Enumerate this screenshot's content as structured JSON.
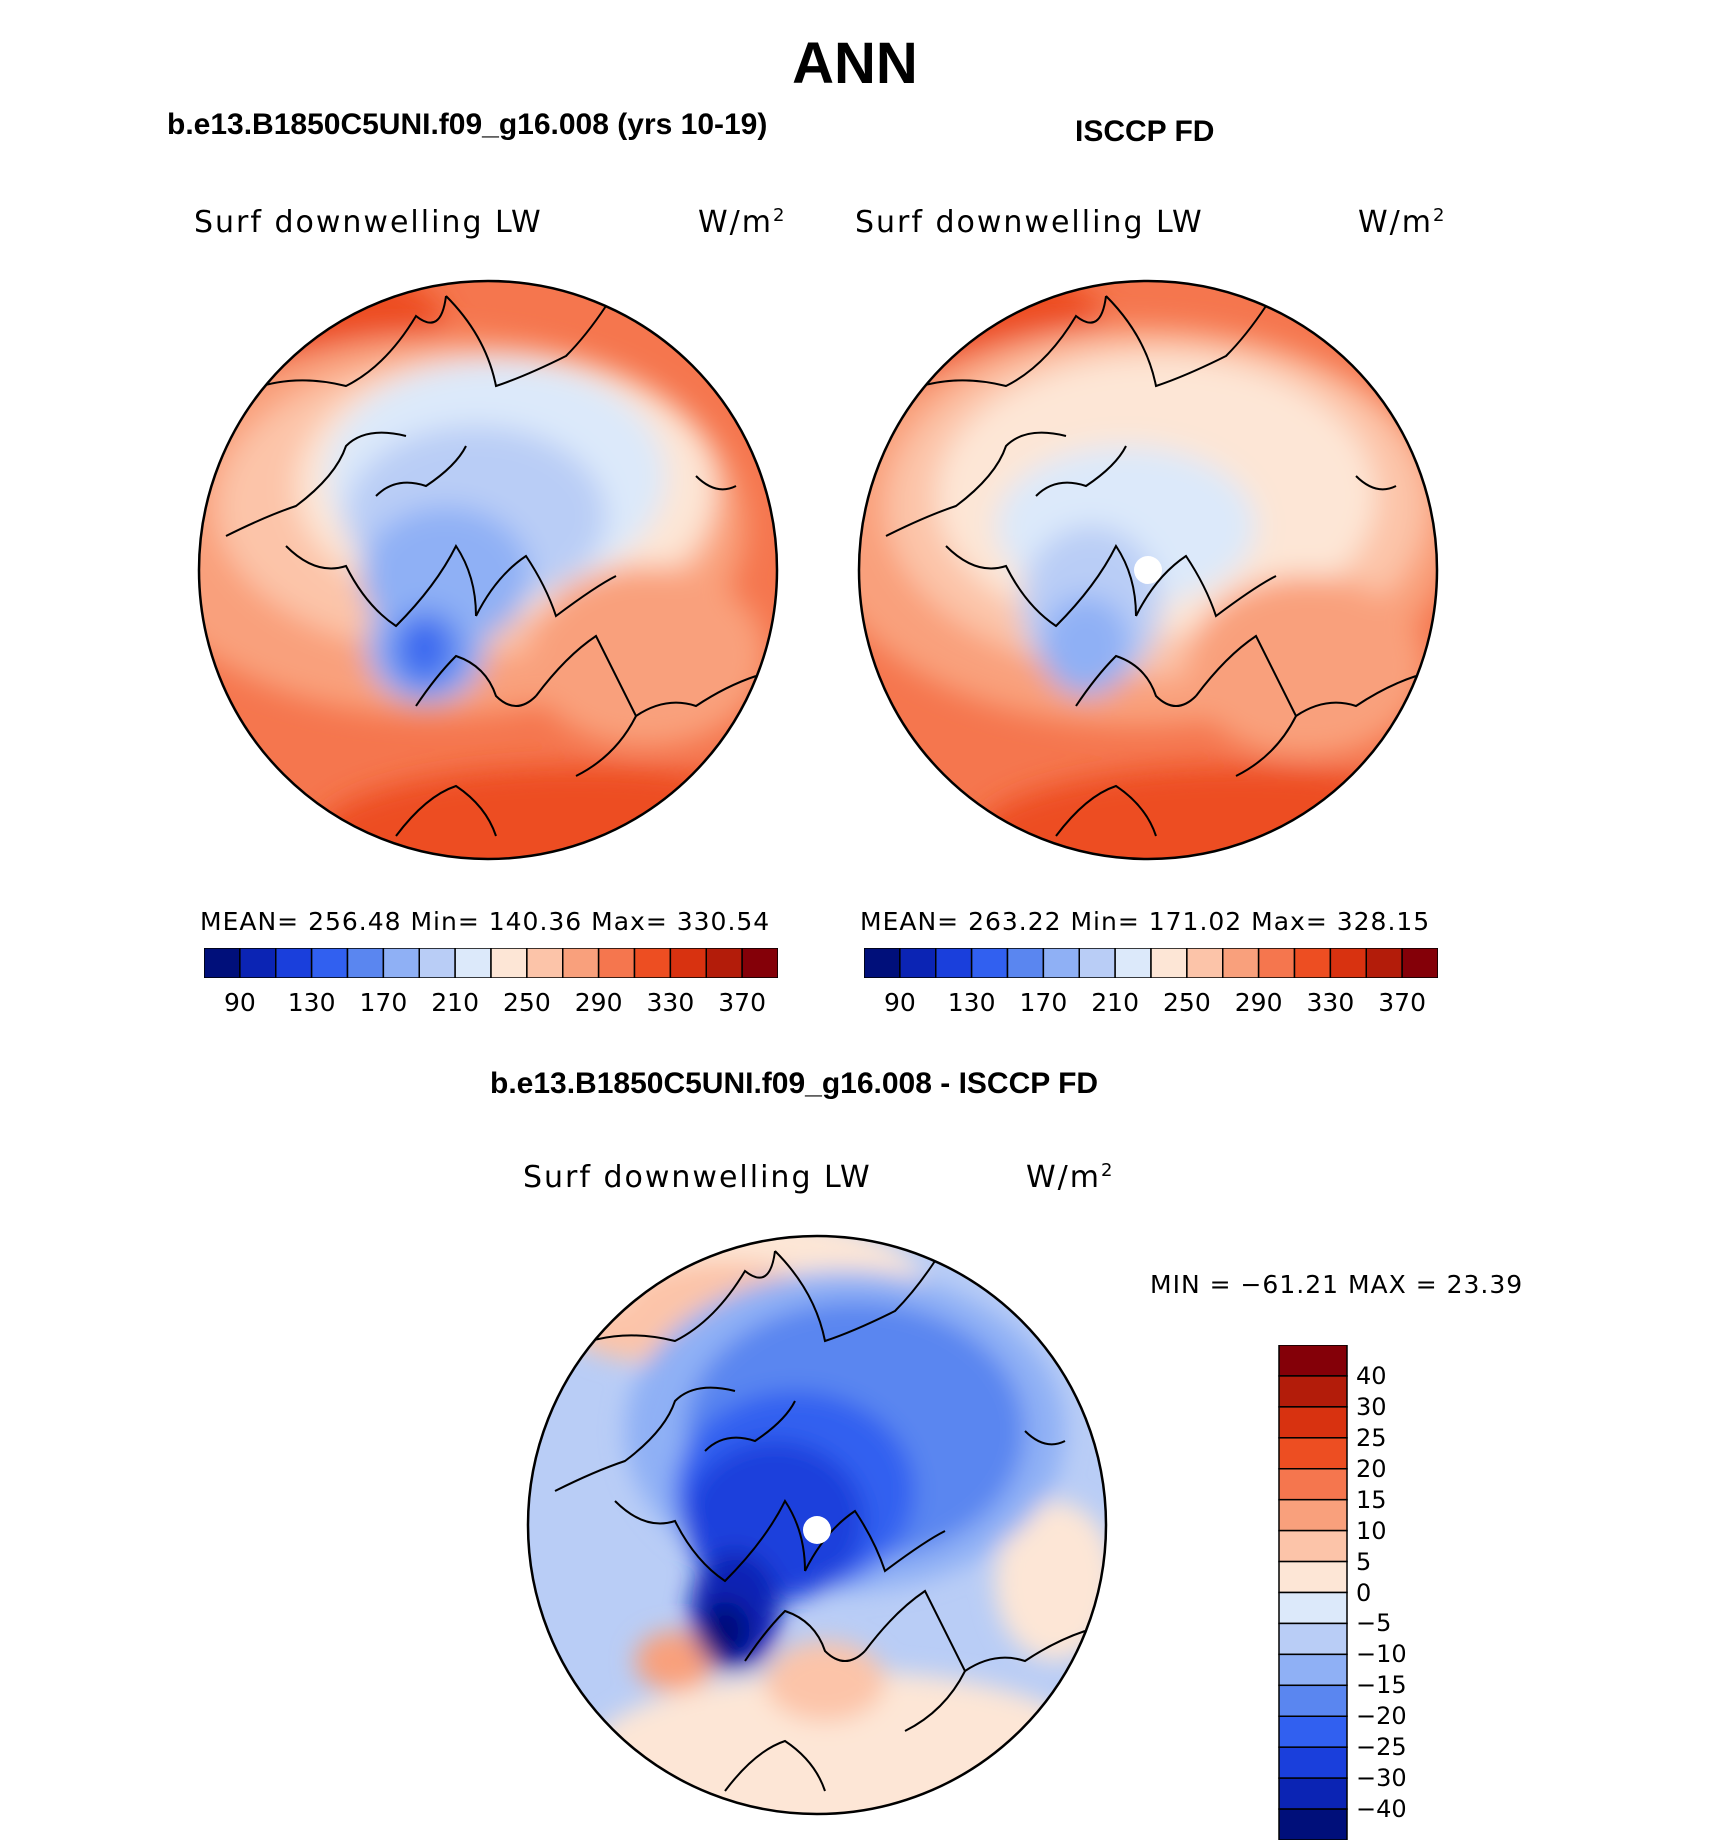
{
  "header": {
    "title": "ANN"
  },
  "panels": [
    {
      "subtitle": "b.e13.B1850C5UNI.f09_g16.008 (yrs 10-19)",
      "label": "Surf downwelling LW",
      "units_base": "W/m",
      "units_exp": "2",
      "stats": "MEAN= 256.48   Min= 140.36   Max= 330.54"
    },
    {
      "subtitle": "ISCCP FD",
      "label": "Surf downwelling LW",
      "units_base": "W/m",
      "units_exp": "2",
      "stats": "MEAN= 263.22   Min= 171.02   Max= 328.15"
    }
  ],
  "diff_panel": {
    "subtitle": "b.e13.B1850C5UNI.f09_g16.008 - ISCCP FD",
    "label": "Surf downwelling LW",
    "units_base": "W/m",
    "units_exp": "2",
    "stats": "MIN = −61.21 MAX =   23.39"
  },
  "colorbar_abs": {
    "colors": [
      "#000f7a",
      "#0b24b4",
      "#1a3fdc",
      "#3160f0",
      "#5a86f0",
      "#8fb0f5",
      "#b9cdf6",
      "#dce9fa",
      "#fde6d6",
      "#fcc4a9",
      "#f9a07c",
      "#f5764e",
      "#ed4e22",
      "#d83210",
      "#b31c0a",
      "#840008"
    ],
    "tick_labels": [
      "90",
      "130",
      "170",
      "210",
      "250",
      "290",
      "330",
      "370"
    ]
  },
  "colorbar_diff": {
    "colors": [
      "#840008",
      "#b31c0a",
      "#d83210",
      "#ed4e22",
      "#f5764e",
      "#f9a07c",
      "#fcc4a9",
      "#fde6d6",
      "#dce9fa",
      "#b9cdf6",
      "#8fb0f5",
      "#5a86f0",
      "#3160f0",
      "#1a3fdc",
      "#0b24b4",
      "#000f7a"
    ],
    "tick_labels": [
      "40",
      "30",
      "25",
      "20",
      "15",
      "10",
      "5",
      "0",
      "−5",
      "−10",
      "−15",
      "−20",
      "−25",
      "−30",
      "−40"
    ]
  }
}
